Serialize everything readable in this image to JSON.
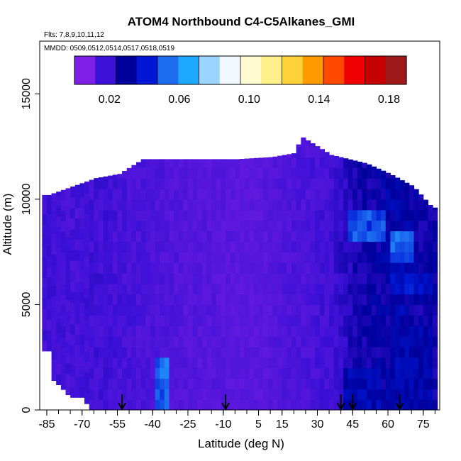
{
  "chart_data": {
    "type": "heatmap",
    "title": "ATOM4 Northbound C4-C5Alkanes_GMI",
    "subtitle_flights": "Flts: 7,8,9,10,11,12",
    "subtitle_dates": "MMDD: 0509,0512,0514,0517,0518,0519",
    "xlabel": "Latitude (deg N)",
    "ylabel": "Altitude (m)",
    "xlim": [
      -88,
      82
    ],
    "ylim": [
      0,
      17500
    ],
    "x_ticks": [
      -85,
      -70,
      -55,
      -40,
      -25,
      -10,
      5,
      15,
      30,
      45,
      60,
      75
    ],
    "x_tick_labels": [
      "-85",
      "-70",
      "-55",
      "-40",
      "-25",
      "-10",
      "5",
      "15",
      "30",
      "45",
      "60",
      "75"
    ],
    "y_ticks": [
      0,
      5000,
      10000,
      15000
    ],
    "y_tick_labels": [
      "0",
      "5000",
      "10000",
      "15000"
    ],
    "colorbar": {
      "range": [
        0,
        0.19
      ],
      "ticks": [
        0.02,
        0.06,
        0.1,
        0.14,
        0.18
      ],
      "tick_labels": [
        "0.02",
        "0.06",
        "0.10",
        "0.14",
        "0.18"
      ],
      "colors": [
        "#7d1fe6",
        "#3c10d6",
        "#00009b",
        "#0018d6",
        "#1e6cf0",
        "#1ea8ff",
        "#9ad4ff",
        "#f2f8ff",
        "#fffbd0",
        "#fff08a",
        "#ffd23a",
        "#ff9b00",
        "#ff4a00",
        "#f00000",
        "#c40000",
        "#9e1a1a"
      ]
    },
    "ceiling": [
      {
        "lat": -85,
        "alt": 10200
      },
      {
        "lat": -75,
        "alt": 10600
      },
      {
        "lat": -65,
        "alt": 11000
      },
      {
        "lat": -55,
        "alt": 11200
      },
      {
        "lat": -45,
        "alt": 11900
      },
      {
        "lat": -35,
        "alt": 11900
      },
      {
        "lat": -20,
        "alt": 11900
      },
      {
        "lat": -5,
        "alt": 11900
      },
      {
        "lat": 10,
        "alt": 12000
      },
      {
        "lat": 20,
        "alt": 12200
      },
      {
        "lat": 22,
        "alt": 13000
      },
      {
        "lat": 35,
        "alt": 12100
      },
      {
        "lat": 50,
        "alt": 11700
      },
      {
        "lat": 60,
        "alt": 11200
      },
      {
        "lat": 70,
        "alt": 10600
      },
      {
        "lat": 78,
        "alt": 9600
      },
      {
        "lat": 82,
        "alt": 9600
      }
    ],
    "floor": [
      {
        "lat": -85,
        "alt": 2800
      },
      {
        "lat": -84,
        "alt": 1500
      },
      {
        "lat": -82,
        "alt": 1300
      },
      {
        "lat": -80,
        "alt": 1100
      },
      {
        "lat": -76,
        "alt": 600
      },
      {
        "lat": -70,
        "alt": 600
      },
      {
        "lat": -68,
        "alt": 0
      }
    ],
    "zonal_means": [
      {
        "lat": -85,
        "value": 0.012
      },
      {
        "lat": -75,
        "value": 0.011
      },
      {
        "lat": -65,
        "value": 0.012
      },
      {
        "lat": -55,
        "value": 0.011
      },
      {
        "lat": -45,
        "value": 0.01
      },
      {
        "lat": -35,
        "value": 0.009
      },
      {
        "lat": -25,
        "value": 0.008
      },
      {
        "lat": -15,
        "value": 0.008
      },
      {
        "lat": -5,
        "value": 0.007
      },
      {
        "lat": 5,
        "value": 0.007
      },
      {
        "lat": 15,
        "value": 0.009
      },
      {
        "lat": 25,
        "value": 0.01
      },
      {
        "lat": 35,
        "value": 0.012
      },
      {
        "lat": 45,
        "value": 0.02
      },
      {
        "lat": 55,
        "value": 0.024
      },
      {
        "lat": 65,
        "value": 0.028
      },
      {
        "lat": 75,
        "value": 0.022
      }
    ],
    "enhanced_features": [
      {
        "lat_min": -40,
        "lat_max": -34,
        "alt_min": 0,
        "alt_max": 2000,
        "value": 0.05
      },
      {
        "lat_min": 42,
        "lat_max": 58,
        "alt_min": 7800,
        "alt_max": 9000,
        "value": 0.045
      },
      {
        "lat_min": 60,
        "lat_max": 70,
        "alt_min": 7000,
        "alt_max": 8000,
        "value": 0.05
      },
      {
        "lat_min": 60,
        "lat_max": 78,
        "alt_min": 5500,
        "alt_max": 6000,
        "value": 0.035
      },
      {
        "lat_min": 40,
        "lat_max": 55,
        "alt_min": 0,
        "alt_max": 1800,
        "value": 0.03
      },
      {
        "lat_min": 60,
        "lat_max": 78,
        "alt_min": 0,
        "alt_max": 3500,
        "value": 0.028
      }
    ],
    "flight_arrow_lats": [
      -53,
      -9,
      40,
      45,
      65
    ]
  }
}
